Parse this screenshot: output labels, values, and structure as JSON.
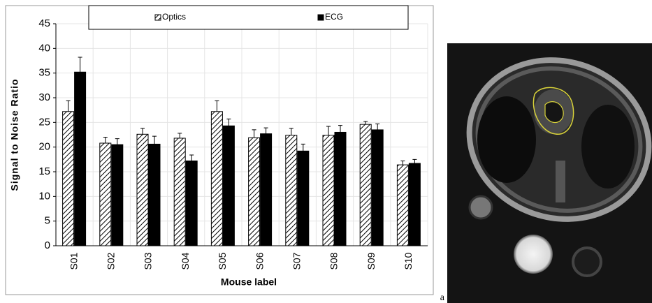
{
  "chart_data": {
    "type": "bar",
    "categories": [
      "S01",
      "S02",
      "S03",
      "S04",
      "S05",
      "S06",
      "S07",
      "S08",
      "S09",
      "S10"
    ],
    "series": [
      {
        "name": "Optics",
        "color": "#000000",
        "pattern": "hatch",
        "values": [
          27.2,
          20.8,
          22.6,
          21.8,
          27.2,
          21.9,
          22.4,
          22.4,
          24.6,
          16.4
        ],
        "errors": [
          2.2,
          1.2,
          1.2,
          1.0,
          2.2,
          1.6,
          1.4,
          1.8,
          0.6,
          0.8
        ]
      },
      {
        "name": "ECG",
        "color": "#000000",
        "pattern": "solid",
        "values": [
          35.2,
          20.5,
          20.6,
          17.2,
          24.3,
          22.7,
          19.2,
          23.0,
          23.5,
          16.7
        ],
        "errors": [
          3.0,
          1.2,
          1.6,
          1.2,
          1.4,
          1.2,
          1.4,
          1.4,
          1.2,
          0.8
        ]
      }
    ],
    "xlabel": "Mouse label",
    "ylabel": "Signal to Noise Ratio",
    "ylim": [
      0,
      45
    ],
    "yticks": [
      0,
      5,
      10,
      15,
      20,
      25,
      30,
      35,
      40,
      45
    ],
    "grid": true,
    "legend": "top"
  },
  "panel_label": "a"
}
